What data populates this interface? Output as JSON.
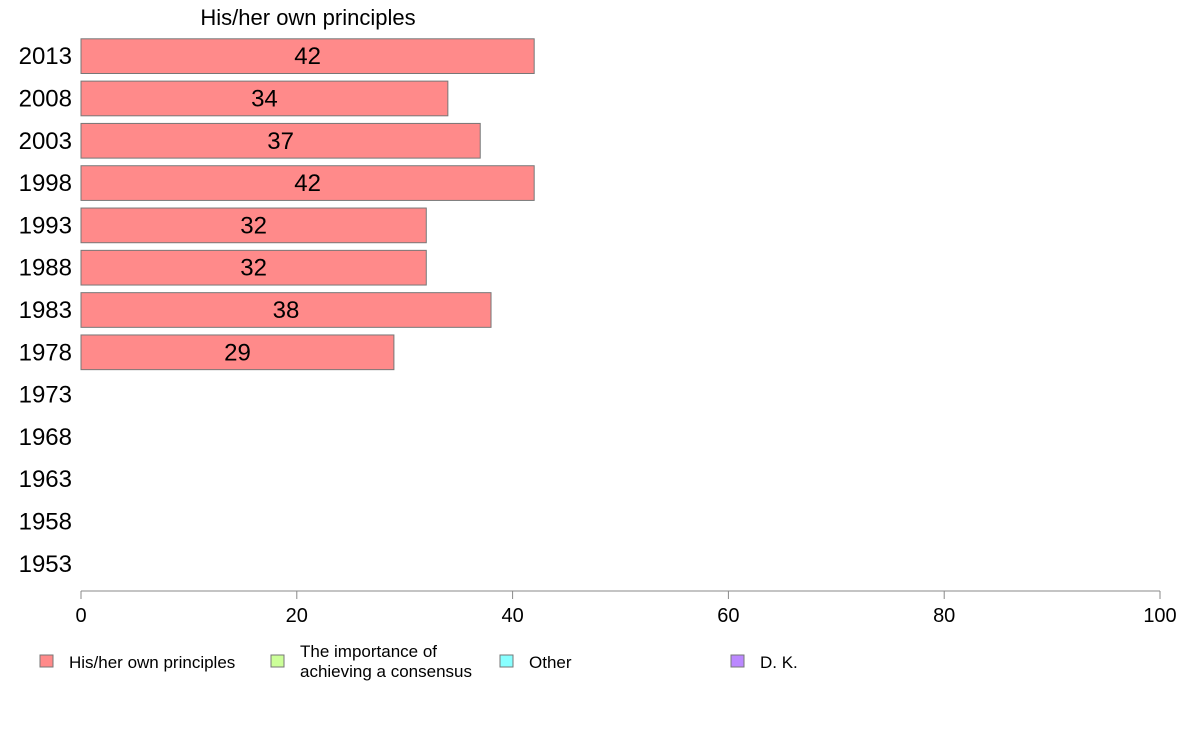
{
  "chart_data": {
    "type": "bar",
    "orientation": "horizontal",
    "title": "His/her own principles",
    "categories": [
      "2013",
      "2008",
      "2003",
      "1998",
      "1993",
      "1988",
      "1983",
      "1978",
      "1973",
      "1968",
      "1963",
      "1958",
      "1953"
    ],
    "series": [
      {
        "name": "His/her own principles",
        "color": "#ff8a8a",
        "values": [
          42,
          34,
          37,
          42,
          32,
          32,
          38,
          29,
          null,
          null,
          null,
          null,
          null
        ]
      }
    ],
    "xlim": [
      0,
      100
    ],
    "xticks": [
      "0",
      "20",
      "40",
      "60",
      "80",
      "100"
    ],
    "grid": false,
    "legend_position": "bottom",
    "legend": [
      {
        "label": "His/her own principles",
        "color": "#ff8a8a"
      },
      {
        "label": "The importance of\nachieving a consensus",
        "color": "#ccff99"
      },
      {
        "label": "Other",
        "color": "#88ffff"
      },
      {
        "label": "D. K.",
        "color": "#bb88ff"
      }
    ]
  }
}
